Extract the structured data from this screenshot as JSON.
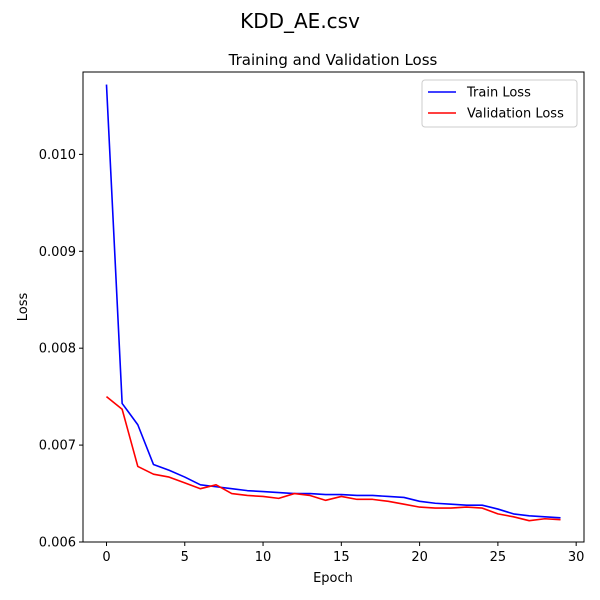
{
  "figure": {
    "suptitle": "KDD_AE.csv"
  },
  "chart_data": {
    "type": "line",
    "title": "Training and Validation Loss",
    "xlabel": "Epoch",
    "ylabel": "Loss",
    "xlim": [
      -1.5,
      30.5
    ],
    "ylim": [
      0.006,
      0.01085
    ],
    "xticks": [
      0,
      5,
      10,
      15,
      20,
      25,
      30
    ],
    "yticks": [
      0.006,
      0.007,
      0.008,
      0.009,
      0.01
    ],
    "ytick_labels": [
      "0.006",
      "0.007",
      "0.008",
      "0.009",
      "0.010"
    ],
    "legend_position": "upper right",
    "grid": false,
    "x": [
      0,
      1,
      2,
      3,
      4,
      5,
      6,
      7,
      8,
      9,
      10,
      11,
      12,
      13,
      14,
      15,
      16,
      17,
      18,
      19,
      20,
      21,
      22,
      23,
      24,
      25,
      26,
      27,
      28,
      29
    ],
    "series": [
      {
        "name": "Train Loss",
        "color": "#0000ff",
        "values": [
          0.01072,
          0.00743,
          0.00721,
          0.0068,
          0.00674,
          0.00667,
          0.00659,
          0.00657,
          0.00655,
          0.00653,
          0.00652,
          0.00651,
          0.0065,
          0.0065,
          0.00649,
          0.00649,
          0.00648,
          0.00648,
          0.00647,
          0.00646,
          0.00642,
          0.0064,
          0.00639,
          0.00638,
          0.00638,
          0.00634,
          0.00629,
          0.00627,
          0.00626,
          0.00625
        ]
      },
      {
        "name": "Validation Loss",
        "color": "#ff0000",
        "values": [
          0.0075,
          0.00737,
          0.00678,
          0.0067,
          0.00667,
          0.00661,
          0.00655,
          0.00659,
          0.0065,
          0.00648,
          0.00647,
          0.00645,
          0.0065,
          0.00648,
          0.00643,
          0.00647,
          0.00644,
          0.00644,
          0.00642,
          0.00639,
          0.00636,
          0.00635,
          0.00635,
          0.00636,
          0.00635,
          0.00629,
          0.00626,
          0.00622,
          0.00624,
          0.00623
        ]
      }
    ]
  }
}
